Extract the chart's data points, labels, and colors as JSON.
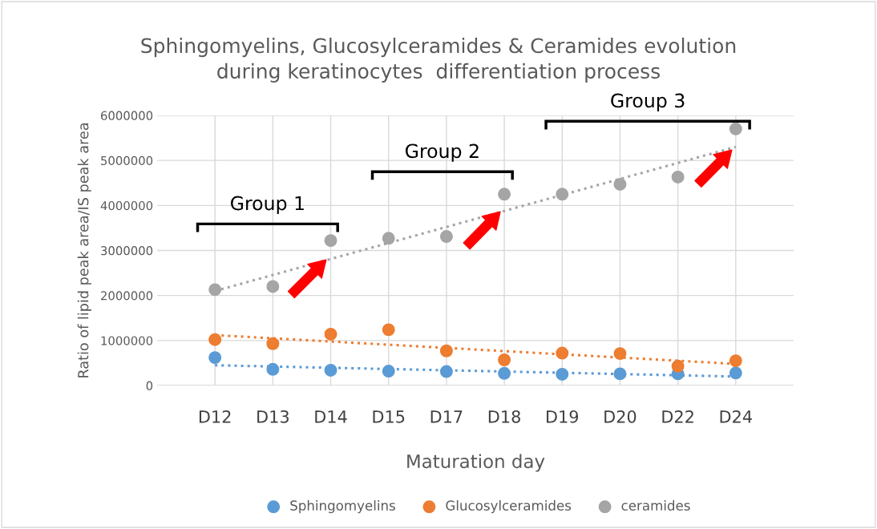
{
  "chart_data": {
    "type": "scatter",
    "title": "Sphingomyelins, Glucosylceramides & Ceramides evolution\nduring keratinocytes  differentiation process",
    "xlabel": "Maturation day",
    "ylabel": "Ratio of lipid peak area/IS peak area",
    "categories": [
      "D12",
      "D13",
      "D14",
      "D15",
      "D17",
      "D18",
      "D19",
      "D20",
      "D22",
      "D24"
    ],
    "series": [
      {
        "name": "Sphingomyelins",
        "color": "#5b9bd5",
        "marker": "circle",
        "values": [
          620000,
          360000,
          340000,
          320000,
          310000,
          270000,
          250000,
          260000,
          260000,
          280000
        ]
      },
      {
        "name": "Glucosylceramides",
        "color": "#ed7d31",
        "marker": "circle",
        "values": [
          1020000,
          930000,
          1140000,
          1240000,
          770000,
          570000,
          720000,
          710000,
          430000,
          550000
        ]
      },
      {
        "name": "ceramides",
        "color": "#a5a5a5",
        "marker": "circle",
        "values": [
          2130000,
          2200000,
          3220000,
          3270000,
          3310000,
          4250000,
          4250000,
          4470000,
          4630000,
          5700000
        ]
      },
      {
        "type": "line",
        "color": "#5b9bd5",
        "line_style": "dotted",
        "marker": "none",
        "x": [
          "D12",
          "D24"
        ],
        "values": [
          450000,
          200000
        ]
      },
      {
        "type": "line",
        "color": "#ed7d31",
        "line_style": "dotted",
        "marker": "none",
        "x": [
          "D12",
          "D24"
        ],
        "values": [
          1120000,
          480000
        ]
      },
      {
        "type": "line",
        "color": "#a5a5a5",
        "line_style": "dotted",
        "marker": "none",
        "x": [
          "D12",
          "D24"
        ],
        "values": [
          2100000,
          5300000
        ]
      }
    ],
    "ylim": [
      0,
      6000000
    ],
    "yticks": [
      0,
      1000000,
      2000000,
      3000000,
      4000000,
      5000000,
      6000000
    ],
    "annotations": [
      "Group 1",
      "Group 2",
      "Group 3"
    ],
    "grid": true,
    "legend": "bottom"
  }
}
